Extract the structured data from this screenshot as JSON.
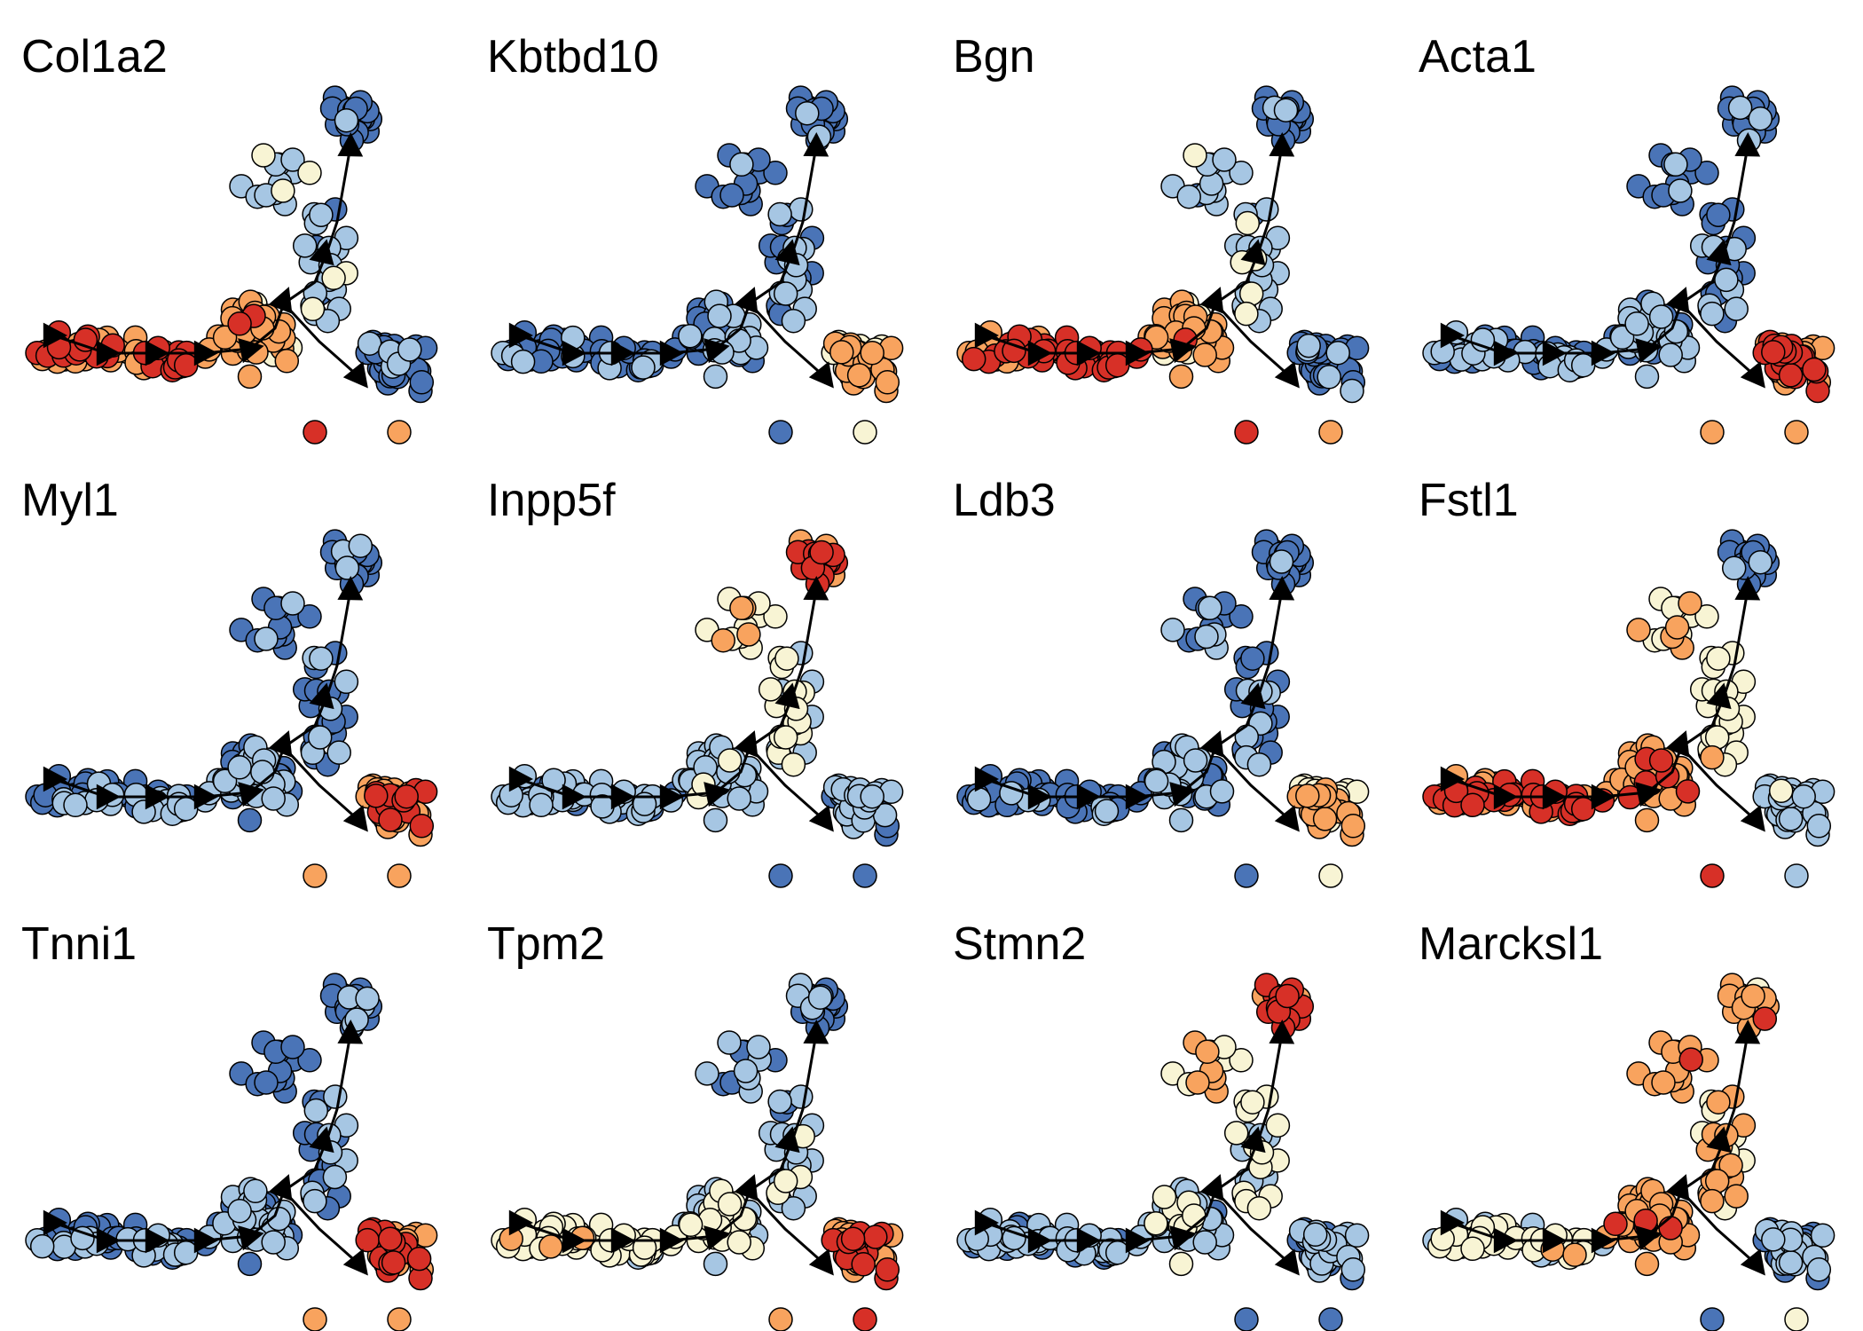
{
  "colors": {
    "low": "#4a74b7",
    "mid_low": "#a6c6e3",
    "mid": "#f8f4d4",
    "mid_high": "#f8a35e",
    "high": "#d73027",
    "trajectory": "#000000",
    "point_stroke": "#000000"
  },
  "chart_data": [
    {
      "type": "scatter",
      "title": "Col1a2",
      "pattern": "left_high",
      "ylim": [
        0,
        1
      ],
      "xlim": [
        0,
        1
      ]
    },
    {
      "type": "scatter",
      "title": "Kbtbd10",
      "pattern": "right_branch_mid",
      "ylim": [
        0,
        1
      ],
      "xlim": [
        0,
        1
      ]
    },
    {
      "type": "scatter",
      "title": "Bgn",
      "pattern": "left_high",
      "ylim": [
        0,
        1
      ],
      "xlim": [
        0,
        1
      ]
    },
    {
      "type": "scatter",
      "title": "Acta1",
      "pattern": "right_branch_high",
      "ylim": [
        0,
        1
      ],
      "xlim": [
        0,
        1
      ]
    },
    {
      "type": "scatter",
      "title": "Myl1",
      "pattern": "right_branch_high",
      "ylim": [
        0,
        1
      ],
      "xlim": [
        0,
        1
      ]
    },
    {
      "type": "scatter",
      "title": "Inpp5f",
      "pattern": "top_high",
      "ylim": [
        0,
        1
      ],
      "xlim": [
        0,
        1
      ]
    },
    {
      "type": "scatter",
      "title": "Ldb3",
      "pattern": "right_branch_mid",
      "ylim": [
        0,
        1
      ],
      "xlim": [
        0,
        1
      ]
    },
    {
      "type": "scatter",
      "title": "Fstl1",
      "pattern": "left_center_high",
      "ylim": [
        0,
        1
      ],
      "xlim": [
        0,
        1
      ]
    },
    {
      "type": "scatter",
      "title": "Tnni1",
      "pattern": "right_branch_high",
      "ylim": [
        0,
        1
      ],
      "xlim": [
        0,
        1
      ]
    },
    {
      "type": "scatter",
      "title": "Tpm2",
      "pattern": "right_high_left_mid",
      "ylim": [
        0,
        1
      ],
      "xlim": [
        0,
        1
      ]
    },
    {
      "type": "scatter",
      "title": "Stmn2",
      "pattern": "top_high",
      "ylim": [
        0,
        1
      ],
      "xlim": [
        0,
        1
      ]
    },
    {
      "type": "scatter",
      "title": "Marcksl1",
      "pattern": "center_top_high",
      "ylim": [
        0,
        1
      ],
      "xlim": [
        0,
        1
      ]
    }
  ]
}
